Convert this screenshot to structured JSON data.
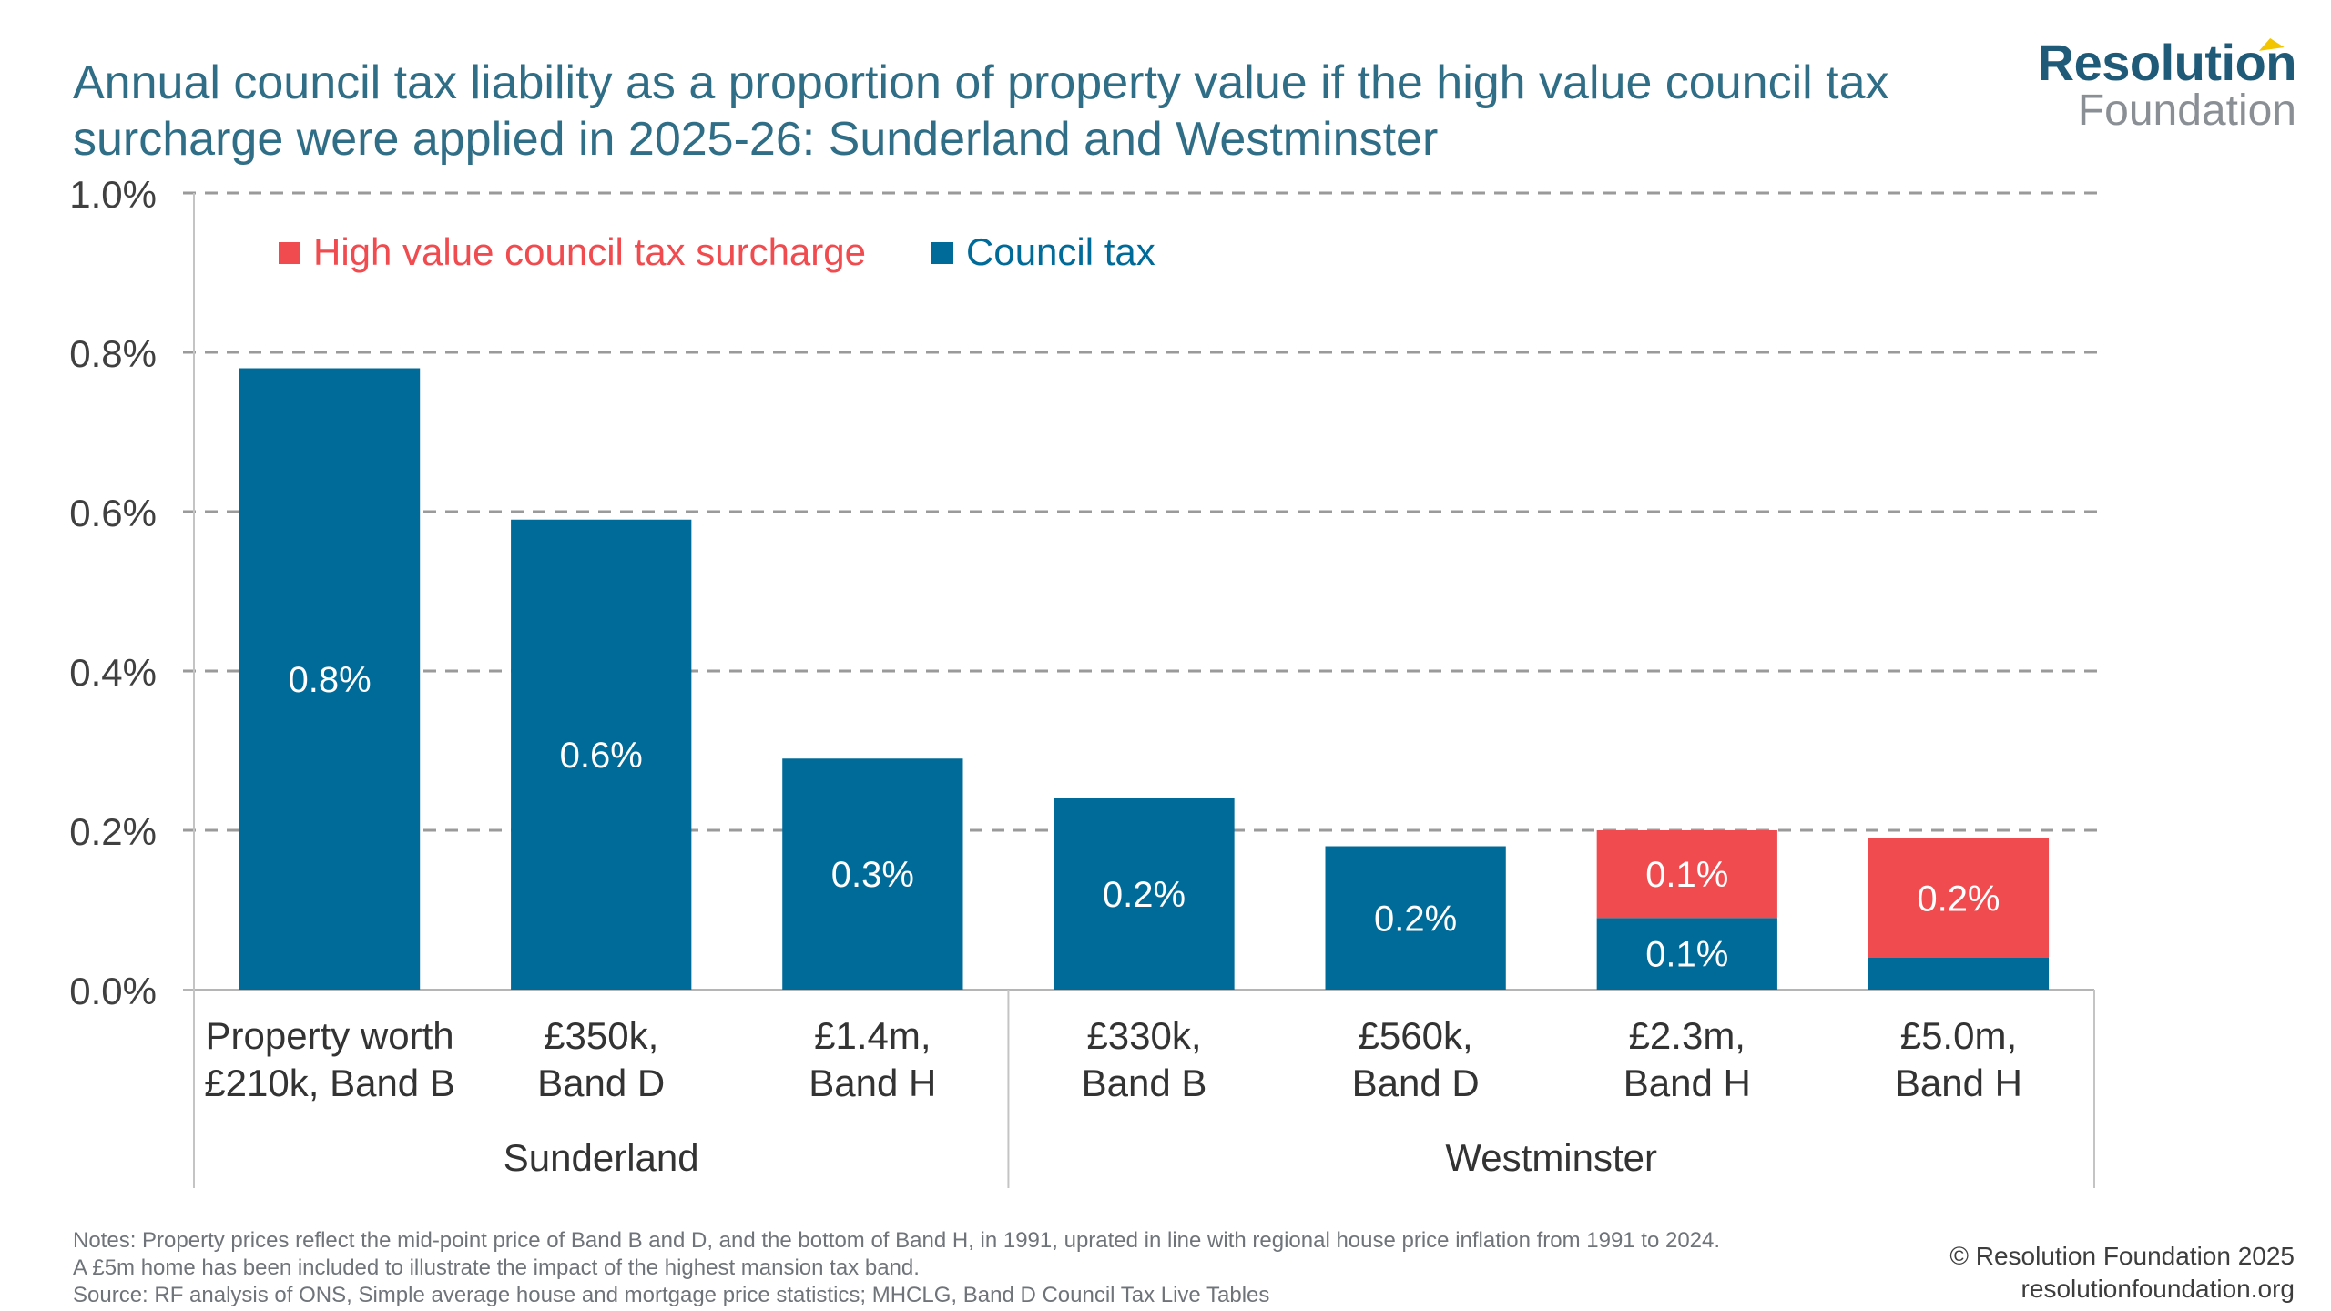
{
  "title_lines": [
    "Annual council tax liability as a proportion of property value if the high value council tax",
    "surcharge were applied in 2025-26: Sunderland and Westminster"
  ],
  "logo": {
    "main": "Resolution",
    "sub": "Foundation"
  },
  "chart_data": {
    "type": "bar",
    "stacked": true,
    "categories": [
      [
        "Property worth",
        "£210k, Band B"
      ],
      [
        "£350k,",
        "Band D"
      ],
      [
        "£1.4m,",
        "Band H"
      ],
      [
        "£330k,",
        "Band B"
      ],
      [
        "£560k,",
        "Band D"
      ],
      [
        "£2.3m,",
        "Band H"
      ],
      [
        "£5.0m,",
        "Band H"
      ]
    ],
    "groups": [
      {
        "name": "Sunderland",
        "start": 0,
        "end": 2
      },
      {
        "name": "Westminster",
        "start": 3,
        "end": 6
      }
    ],
    "series": [
      {
        "name": "Council tax",
        "color": "#006b98",
        "values": [
          0.78,
          0.59,
          0.29,
          0.24,
          0.18,
          0.09,
          0.04
        ],
        "labels": [
          "0.8%",
          "0.6%",
          "0.3%",
          "0.2%",
          "0.2%",
          "0.1%",
          ""
        ]
      },
      {
        "name": "High value council tax surcharge",
        "color": "#f04c4f",
        "values": [
          0,
          0,
          0,
          0,
          0,
          0.11,
          0.15
        ],
        "labels": [
          "",
          "",
          "",
          "",
          "",
          "0.1%",
          "0.2%"
        ]
      }
    ],
    "legend_order": [
      "High value council tax surcharge",
      "Council tax"
    ],
    "legend_position": "top-left",
    "ylim": [
      0,
      1.0
    ],
    "yticks": [
      0,
      0.2,
      0.4,
      0.6,
      0.8,
      1.0
    ],
    "ytick_labels": [
      "0.0%",
      "0.2%",
      "0.4%",
      "0.6%",
      "0.8%",
      "1.0%"
    ],
    "grid": "horizontal-dashed",
    "xlabel": "",
    "ylabel": ""
  },
  "notes": [
    "Notes: Property prices reflect the mid-point price of Band B and D, and the bottom of Band H, in 1991, uprated in line with regional house price inflation from 1991 to 2024.",
    "A £5m home has been included to illustrate the impact of the highest mansion tax band.",
    "Source: RF analysis of ONS, Simple average house and mortgage price statistics; MHCLG, Band D Council Tax Live Tables"
  ],
  "credit": [
    "© Resolution Foundation 2025",
    "resolutionfoundation.org"
  ]
}
